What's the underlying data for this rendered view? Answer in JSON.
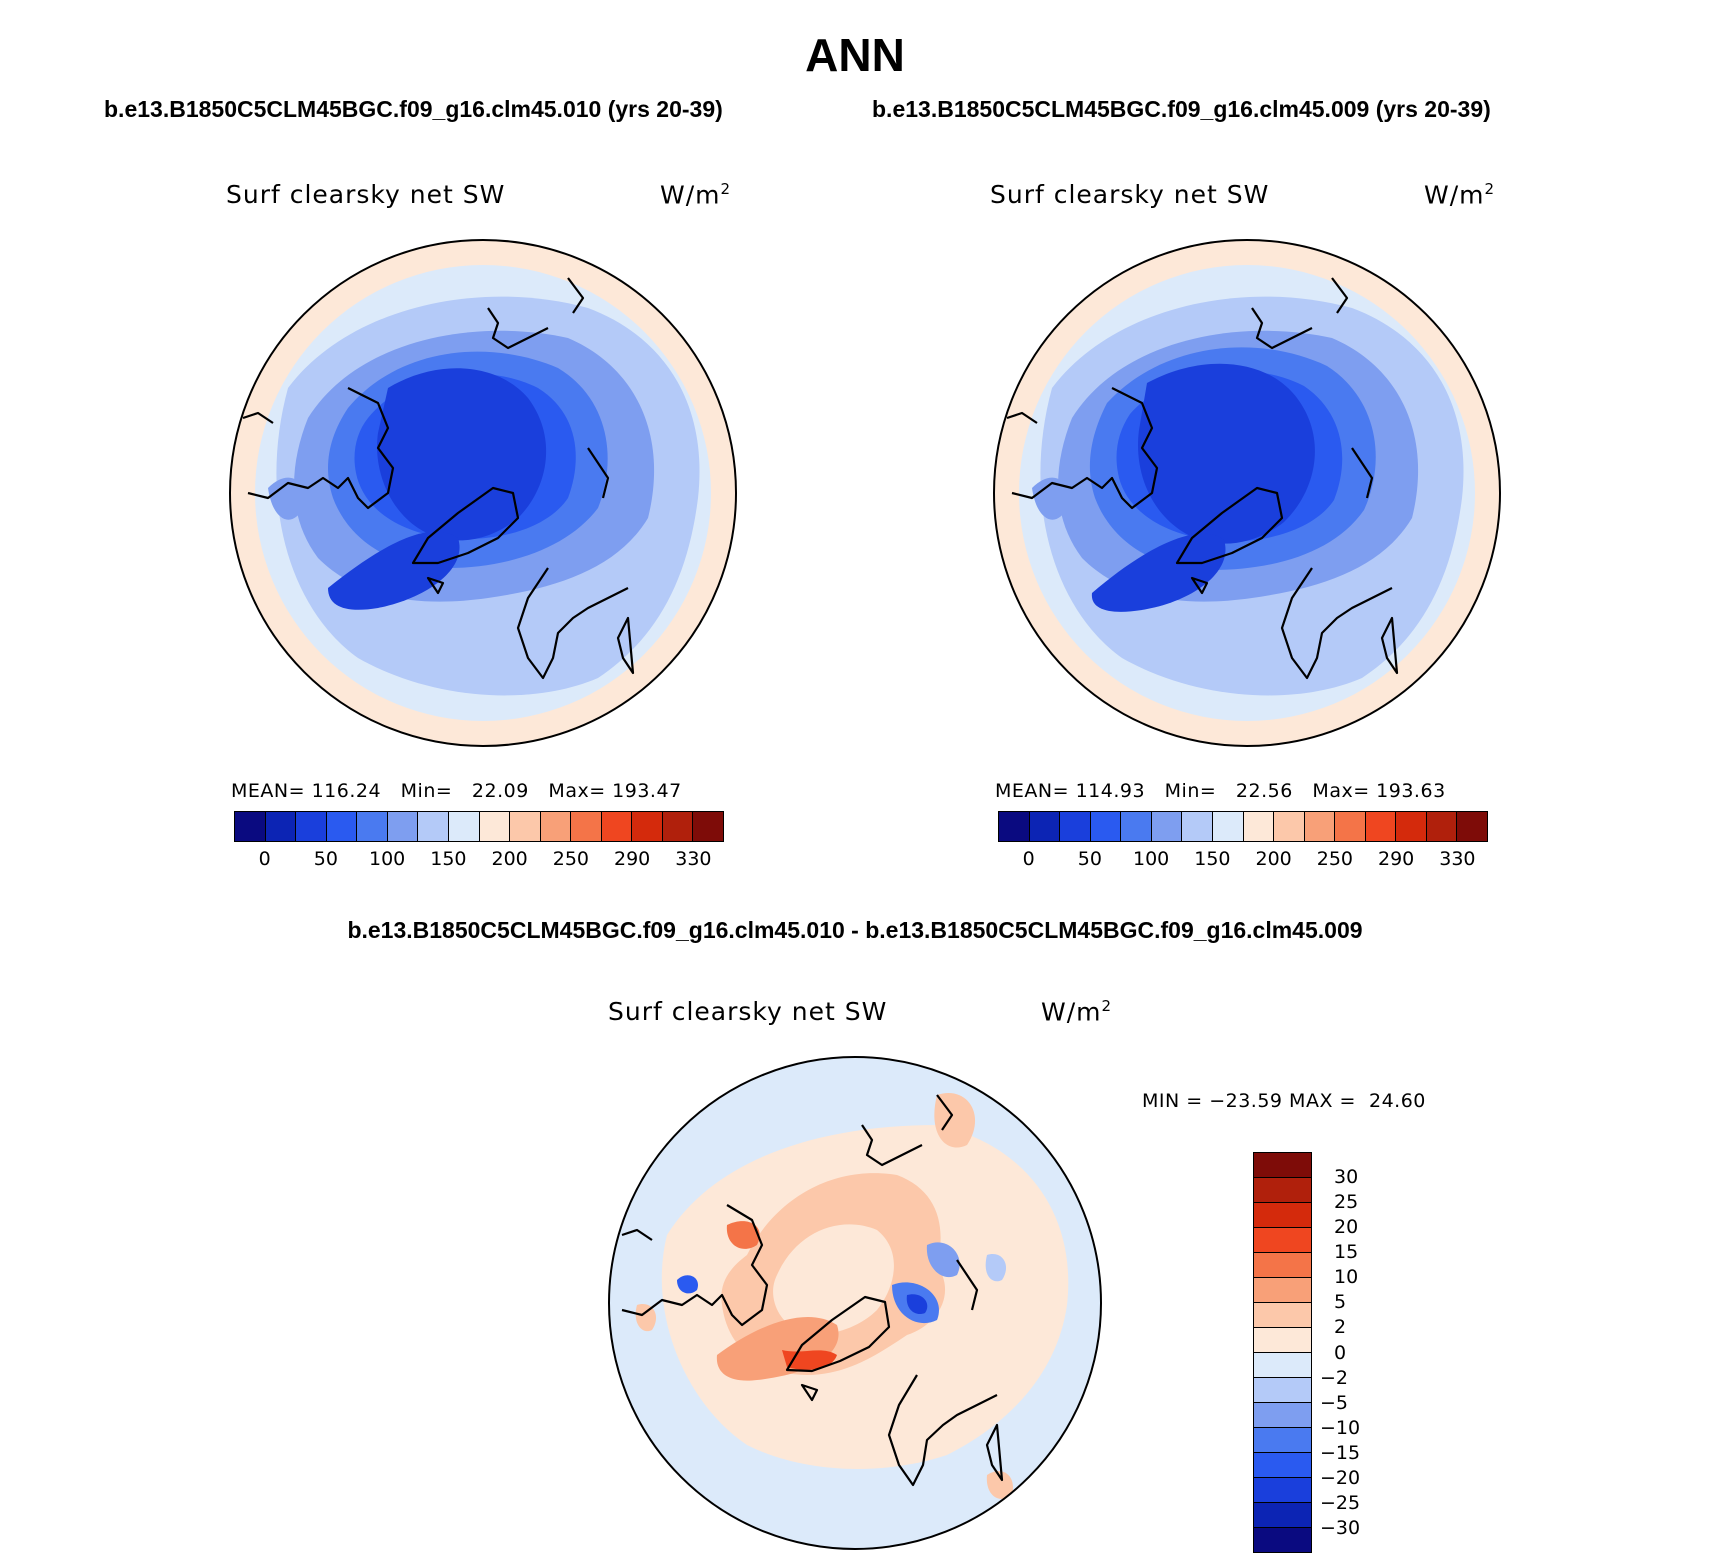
{
  "header": {
    "season": "ANN",
    "case_left": "b.e13.B1850C5CLM45BGC.f09_g16.clm45.010 (yrs 20-39)",
    "case_right": "b.e13.B1850C5CLM45BGC.f09_g16.clm45.009 (yrs 20-39)",
    "diff_title": "b.e13.B1850C5CLM45BGC.f09_g16.clm45.010 - b.e13.B1850C5CLM45BGC.f09_g16.clm45.009"
  },
  "panels": {
    "left": {
      "variable": "Surf clearsky net SW",
      "units": "W/m",
      "units_sup": "2",
      "stats": "MEAN= 116.24   Min=   22.09   Max= 193.47"
    },
    "right": {
      "variable": "Surf clearsky net SW",
      "units": "W/m",
      "units_sup": "2",
      "stats": "MEAN= 114.93   Min=   22.56   Max= 193.63"
    },
    "diff": {
      "variable": "Surf clearsky net SW",
      "units": "W/m",
      "units_sup": "2",
      "stats": "MIN = −23.59 MAX =  24.60"
    }
  },
  "colorbar_main": {
    "colors": [
      "#0a0a80",
      "#0c24b4",
      "#1a3fdc",
      "#2a5af0",
      "#4a7af0",
      "#7e9ef0",
      "#b4caf8",
      "#dceafa",
      "#fde8d8",
      "#fcc8aa",
      "#f8a078",
      "#f47448",
      "#ef4620",
      "#d42a0c",
      "#b0200c",
      "#7e0c08"
    ],
    "tick_labels": [
      "0",
      "50",
      "100",
      "150",
      "200",
      "250",
      "290",
      "330"
    ]
  },
  "colorbar_diff": {
    "colors": [
      "#7e0c08",
      "#b0200c",
      "#d42a0c",
      "#ef4620",
      "#f47448",
      "#f8a078",
      "#fcc8aa",
      "#fde8d8",
      "#dceafa",
      "#b4caf8",
      "#7e9ef0",
      "#4a7af0",
      "#2a5af0",
      "#1a3fdc",
      "#0c24b4",
      "#0a0a80"
    ],
    "tick_labels": [
      "30",
      "25",
      "20",
      "15",
      "10",
      "5",
      "2",
      "0",
      "−2",
      "−5",
      "−10",
      "−15",
      "−20",
      "−25",
      "−30"
    ]
  }
}
